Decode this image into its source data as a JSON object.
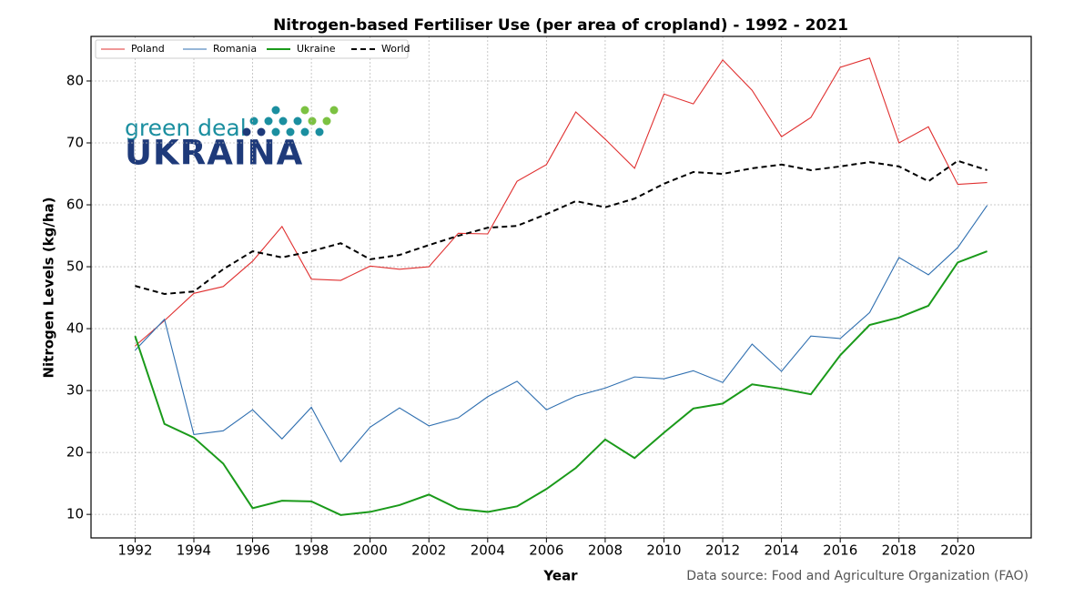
{
  "chart_data": {
    "type": "line",
    "title": "Nitrogen-based Fertiliser Use (per area of cropland) - 1992 - 2021",
    "x_label": "Year",
    "y_label": "Nitrogen Levels (kg/ha)",
    "source": "Data source: Food and Agriculture Organization (FAO)",
    "x": [
      1992,
      1993,
      1994,
      1995,
      1996,
      1997,
      1998,
      1999,
      2000,
      2001,
      2002,
      2003,
      2004,
      2005,
      2006,
      2007,
      2008,
      2009,
      2010,
      2011,
      2012,
      2013,
      2014,
      2015,
      2016,
      2017,
      2018,
      2019,
      2020,
      2021
    ],
    "series": [
      {
        "name": "Poland",
        "color": "#e03030",
        "linestyle": "solid",
        "values": [
          37.2,
          41.3,
          45.7,
          46.8,
          50.9,
          56.5,
          48.0,
          47.8,
          50.1,
          49.6,
          50.0,
          55.4,
          55.3,
          63.8,
          66.5,
          75.0,
          70.6,
          65.9,
          77.9,
          76.3,
          83.4,
          78.5,
          71.0,
          74.1,
          82.2,
          83.7,
          70.0,
          72.6,
          63.3,
          63.6
        ]
      },
      {
        "name": "Romania",
        "color": "#2f6fb0",
        "linestyle": "solid",
        "values": [
          36.5,
          41.5,
          22.9,
          23.5,
          26.9,
          22.2,
          27.3,
          18.5,
          24.1,
          27.2,
          24.3,
          25.6,
          29.0,
          31.5,
          26.9,
          29.1,
          30.4,
          32.2,
          31.9,
          33.2,
          31.3,
          37.5,
          33.1,
          38.8,
          38.4,
          42.6,
          51.5,
          48.7,
          53.1,
          59.9
        ]
      },
      {
        "name": "Ukraine",
        "color": "#1a9a1a",
        "linestyle": "solid",
        "values": [
          38.8,
          24.6,
          22.4,
          18.2,
          11.0,
          12.2,
          12.1,
          9.9,
          10.4,
          11.5,
          13.2,
          10.9,
          10.4,
          11.3,
          14.1,
          17.5,
          22.1,
          19.1,
          23.2,
          27.1,
          27.9,
          31.0,
          30.3,
          29.4,
          35.7,
          40.6,
          41.8,
          43.7,
          50.7,
          52.5
        ]
      },
      {
        "name": "World",
        "color": "#000000",
        "linestyle": "dashed",
        "values": [
          46.9,
          45.6,
          46.0,
          49.6,
          52.5,
          51.5,
          52.5,
          53.8,
          51.2,
          51.9,
          53.5,
          55.0,
          56.3,
          56.6,
          58.5,
          60.6,
          59.6,
          61.0,
          63.4,
          65.3,
          65.0,
          65.9,
          66.5,
          65.6,
          66.2,
          66.9,
          66.2,
          63.8,
          67.1,
          65.6
        ]
      }
    ],
    "xlim": [
      1990.5,
      2022.5
    ],
    "xticks": [
      1992,
      1994,
      1996,
      1998,
      2000,
      2002,
      2004,
      2006,
      2008,
      2010,
      2012,
      2014,
      2016,
      2018,
      2020
    ],
    "ylim": [
      6.2,
      87.2
    ],
    "yticks": [
      10,
      20,
      30,
      40,
      50,
      60,
      70,
      80
    ],
    "grid": true,
    "legend": "upper left",
    "logo": {
      "line1": "green deal",
      "line2": "UKRAINA"
    }
  }
}
